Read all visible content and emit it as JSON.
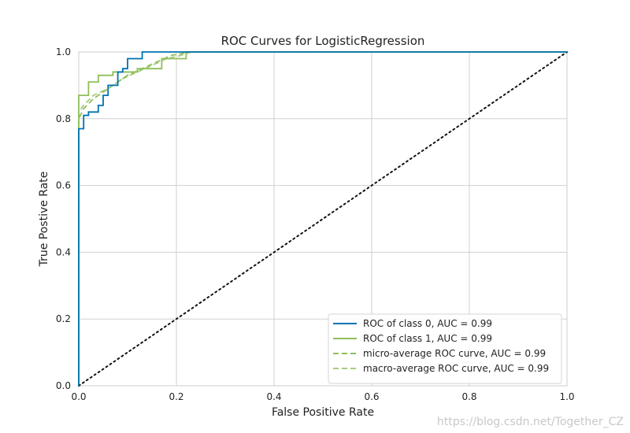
{
  "chart_data": {
    "type": "line",
    "title": "ROC Curves for LogisticRegression",
    "xlabel": "False Positive Rate",
    "ylabel": "True Postive Rate",
    "xlim": [
      0,
      1
    ],
    "ylim": [
      0,
      1
    ],
    "xticks": [
      "0.0",
      "0.2",
      "0.4",
      "0.6",
      "0.8",
      "1.0"
    ],
    "yticks": [
      "0.0",
      "0.2",
      "0.4",
      "0.6",
      "0.8",
      "1.0"
    ],
    "grid": true,
    "legend_position": "bottom-right",
    "series": [
      {
        "name": "ROC of class 0, AUC = 0.99",
        "color": "#0072b2",
        "style": "solid",
        "x": [
          0,
          0,
          0.01,
          0.01,
          0.02,
          0.02,
          0.04,
          0.04,
          0.05,
          0.05,
          0.06,
          0.06,
          0.08,
          0.08,
          0.09,
          0.09,
          0.1,
          0.1,
          0.13,
          0.13,
          1.0
        ],
        "y": [
          0,
          0.77,
          0.77,
          0.81,
          0.81,
          0.82,
          0.82,
          0.84,
          0.84,
          0.87,
          0.87,
          0.9,
          0.9,
          0.94,
          0.94,
          0.95,
          0.95,
          0.98,
          0.98,
          1.0,
          1.0
        ]
      },
      {
        "name": "ROC of class 1, AUC = 0.99",
        "color": "#8ebf59",
        "style": "solid",
        "x": [
          0,
          0,
          0.02,
          0.02,
          0.04,
          0.04,
          0.07,
          0.07,
          0.12,
          0.12,
          0.17,
          0.17,
          0.22,
          0.22,
          1.0
        ],
        "y": [
          0,
          0.87,
          0.87,
          0.91,
          0.91,
          0.93,
          0.93,
          0.94,
          0.94,
          0.95,
          0.95,
          0.98,
          0.98,
          1.0,
          1.0
        ]
      },
      {
        "name": "micro-average ROC curve, AUC = 0.99",
        "color": "#8ebf59",
        "style": "dashed",
        "x": [
          0,
          0,
          0.01,
          0.03,
          0.05,
          0.08,
          0.1,
          0.13,
          0.16,
          0.19,
          0.23,
          1.0
        ],
        "y": [
          0,
          0.8,
          0.83,
          0.86,
          0.88,
          0.91,
          0.93,
          0.95,
          0.97,
          0.99,
          1.0,
          1.0
        ]
      },
      {
        "name": "macro-average ROC curve, AUC = 0.99",
        "color": "#a8cc80",
        "style": "dashed",
        "x": [
          0,
          0,
          0.01,
          0.03,
          0.06,
          0.09,
          0.12,
          0.15,
          0.18,
          0.21,
          0.23,
          1.0
        ],
        "y": [
          0,
          0.82,
          0.84,
          0.87,
          0.89,
          0.92,
          0.94,
          0.96,
          0.98,
          0.99,
          1.0,
          1.0
        ]
      },
      {
        "name": "chance",
        "color": "#111111",
        "style": "dotted",
        "x": [
          0,
          1
        ],
        "y": [
          0,
          1
        ],
        "in_legend": false
      }
    ]
  },
  "watermark": "https://blog.csdn.net/Together_CZ"
}
